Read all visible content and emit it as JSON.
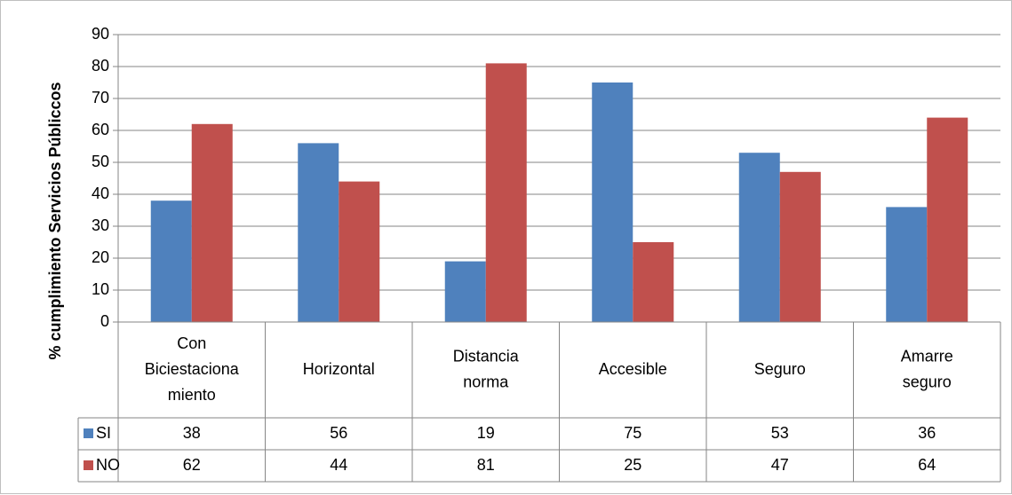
{
  "chart_data": {
    "type": "bar",
    "ylabel": "% cumplimiento Servicios Públiccos",
    "xlabel": "",
    "ylim": [
      0,
      90
    ],
    "yticks": [
      0,
      10,
      20,
      30,
      40,
      50,
      60,
      70,
      80,
      90
    ],
    "grid": true,
    "categories": [
      "Con Biciestacionamiento",
      "Horizontal",
      "Distancia norma",
      "Accesible",
      "Seguro",
      "Amarre seguro"
    ],
    "category_display_lines": [
      [
        "Con",
        "Biciestaciona",
        "miento"
      ],
      [
        "Horizontal"
      ],
      [
        "Distancia",
        "norma"
      ],
      [
        "Accesible"
      ],
      [
        "Seguro"
      ],
      [
        "Amarre",
        "seguro"
      ]
    ],
    "series": [
      {
        "name": "SI",
        "color": "#4f81bd",
        "values": [
          38,
          56,
          19,
          75,
          53,
          36
        ]
      },
      {
        "name": "NO",
        "color": "#c0504d",
        "values": [
          62,
          44,
          81,
          25,
          47,
          64
        ]
      }
    ],
    "legend": "data-table"
  }
}
